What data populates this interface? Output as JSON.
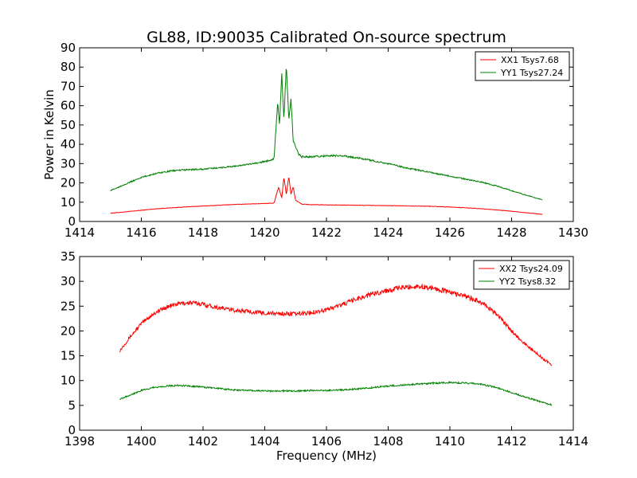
{
  "title": "GL88, ID:90035 Calibrated On-source spectrum",
  "chart_data": [
    {
      "type": "line",
      "title": "GL88, ID:90035 Calibrated On-source spectrum",
      "xlabel": "",
      "ylabel": "Power in Kelvin",
      "xlim": [
        1414,
        1430
      ],
      "ylim": [
        0,
        90
      ],
      "xticks": [
        1414,
        1416,
        1418,
        1420,
        1422,
        1424,
        1426,
        1428,
        1430
      ],
      "yticks": [
        0,
        10,
        20,
        30,
        40,
        50,
        60,
        70,
        80,
        90
      ],
      "grid": false,
      "legend_position": "top-right",
      "series": [
        {
          "name": "XX1 Tsys7.68",
          "color": "#ff0000",
          "x": [
            1415.0,
            1415.5,
            1416.0,
            1416.5,
            1417.0,
            1417.5,
            1418.0,
            1418.5,
            1419.0,
            1419.5,
            1420.0,
            1420.3,
            1420.45,
            1420.55,
            1420.62,
            1420.7,
            1420.78,
            1420.85,
            1420.92,
            1421.0,
            1421.2,
            1421.5,
            1422.0,
            1422.5,
            1423.0,
            1423.5,
            1424.0,
            1424.5,
            1425.0,
            1425.5,
            1426.0,
            1426.5,
            1427.0,
            1427.5,
            1428.0,
            1428.5,
            1429.0
          ],
          "y": [
            4.3,
            5.0,
            5.8,
            6.6,
            7.1,
            7.6,
            8.0,
            8.4,
            8.8,
            9.1,
            9.3,
            9.5,
            18,
            12,
            23,
            14,
            23.5,
            14,
            18,
            11,
            9.0,
            8.7,
            8.6,
            8.5,
            8.4,
            8.3,
            8.2,
            8.1,
            8.0,
            7.8,
            7.5,
            7.1,
            6.6,
            6.0,
            5.3,
            4.5,
            3.7
          ]
        },
        {
          "name": "YY1 Tsys27.24",
          "color": "#008000",
          "x": [
            1415.0,
            1415.5,
            1416.0,
            1416.5,
            1417.0,
            1417.5,
            1418.0,
            1418.5,
            1419.0,
            1419.5,
            1420.0,
            1420.3,
            1420.42,
            1420.48,
            1420.55,
            1420.62,
            1420.7,
            1420.78,
            1420.85,
            1420.92,
            1421.0,
            1421.1,
            1421.2,
            1421.5,
            1422.0,
            1422.5,
            1423.0,
            1423.5,
            1424.0,
            1424.5,
            1425.0,
            1425.5,
            1426.0,
            1426.5,
            1427.0,
            1427.5,
            1428.0,
            1428.5,
            1429.0
          ],
          "y": [
            16.0,
            19.5,
            22.8,
            25.0,
            26.3,
            26.8,
            27.1,
            27.8,
            28.6,
            29.6,
            31.0,
            32.5,
            62,
            50,
            77,
            52,
            82,
            52,
            64,
            42,
            39,
            35,
            33.5,
            33.5,
            34.0,
            34.0,
            33.0,
            31.5,
            30.0,
            28.0,
            26.5,
            25.0,
            23.5,
            22.0,
            20.5,
            18.5,
            16.0,
            13.5,
            11.2
          ]
        }
      ]
    },
    {
      "type": "line",
      "title": "",
      "xlabel": "Frequency (MHz)",
      "ylabel": "",
      "xlim": [
        1398,
        1414
      ],
      "ylim": [
        0,
        35
      ],
      "xticks": [
        1398,
        1400,
        1402,
        1404,
        1406,
        1408,
        1410,
        1412,
        1414
      ],
      "yticks": [
        0,
        5,
        10,
        15,
        20,
        25,
        30,
        35
      ],
      "grid": false,
      "legend_position": "top-right",
      "series": [
        {
          "name": "XX2 Tsys24.09",
          "color": "#ff0000",
          "x": [
            1399.3,
            1399.6,
            1400.0,
            1400.4,
            1400.8,
            1401.2,
            1401.6,
            1402.0,
            1402.5,
            1403.0,
            1403.5,
            1404.0,
            1404.5,
            1405.0,
            1405.5,
            1406.0,
            1406.5,
            1407.0,
            1407.5,
            1408.0,
            1408.5,
            1409.0,
            1409.5,
            1410.0,
            1410.5,
            1411.0,
            1411.5,
            1412.0,
            1412.5,
            1413.0,
            1413.3
          ],
          "y": [
            16.0,
            18.5,
            21.5,
            23.5,
            24.8,
            25.5,
            25.7,
            25.4,
            24.7,
            24.2,
            23.9,
            23.6,
            23.5,
            23.4,
            23.7,
            24.3,
            25.3,
            26.5,
            27.5,
            28.2,
            28.8,
            29.0,
            28.6,
            27.8,
            27.0,
            25.8,
            23.5,
            20.0,
            17.0,
            14.5,
            13.2
          ]
        },
        {
          "name": "YY2 Tsys8.32",
          "color": "#008000",
          "x": [
            1399.3,
            1399.6,
            1400.0,
            1400.4,
            1400.8,
            1401.2,
            1401.6,
            1402.0,
            1402.5,
            1403.0,
            1403.5,
            1404.0,
            1404.5,
            1405.0,
            1405.5,
            1406.0,
            1406.5,
            1407.0,
            1407.5,
            1408.0,
            1408.5,
            1409.0,
            1409.5,
            1410.0,
            1410.5,
            1411.0,
            1411.5,
            1412.0,
            1412.5,
            1413.0,
            1413.3
          ],
          "y": [
            6.3,
            7.0,
            8.0,
            8.6,
            8.9,
            9.0,
            8.9,
            8.7,
            8.4,
            8.1,
            8.0,
            7.9,
            7.9,
            7.9,
            8.0,
            8.0,
            8.1,
            8.3,
            8.6,
            8.9,
            9.1,
            9.3,
            9.5,
            9.6,
            9.5,
            9.3,
            8.6,
            7.6,
            6.6,
            5.6,
            5.1
          ]
        }
      ]
    }
  ]
}
